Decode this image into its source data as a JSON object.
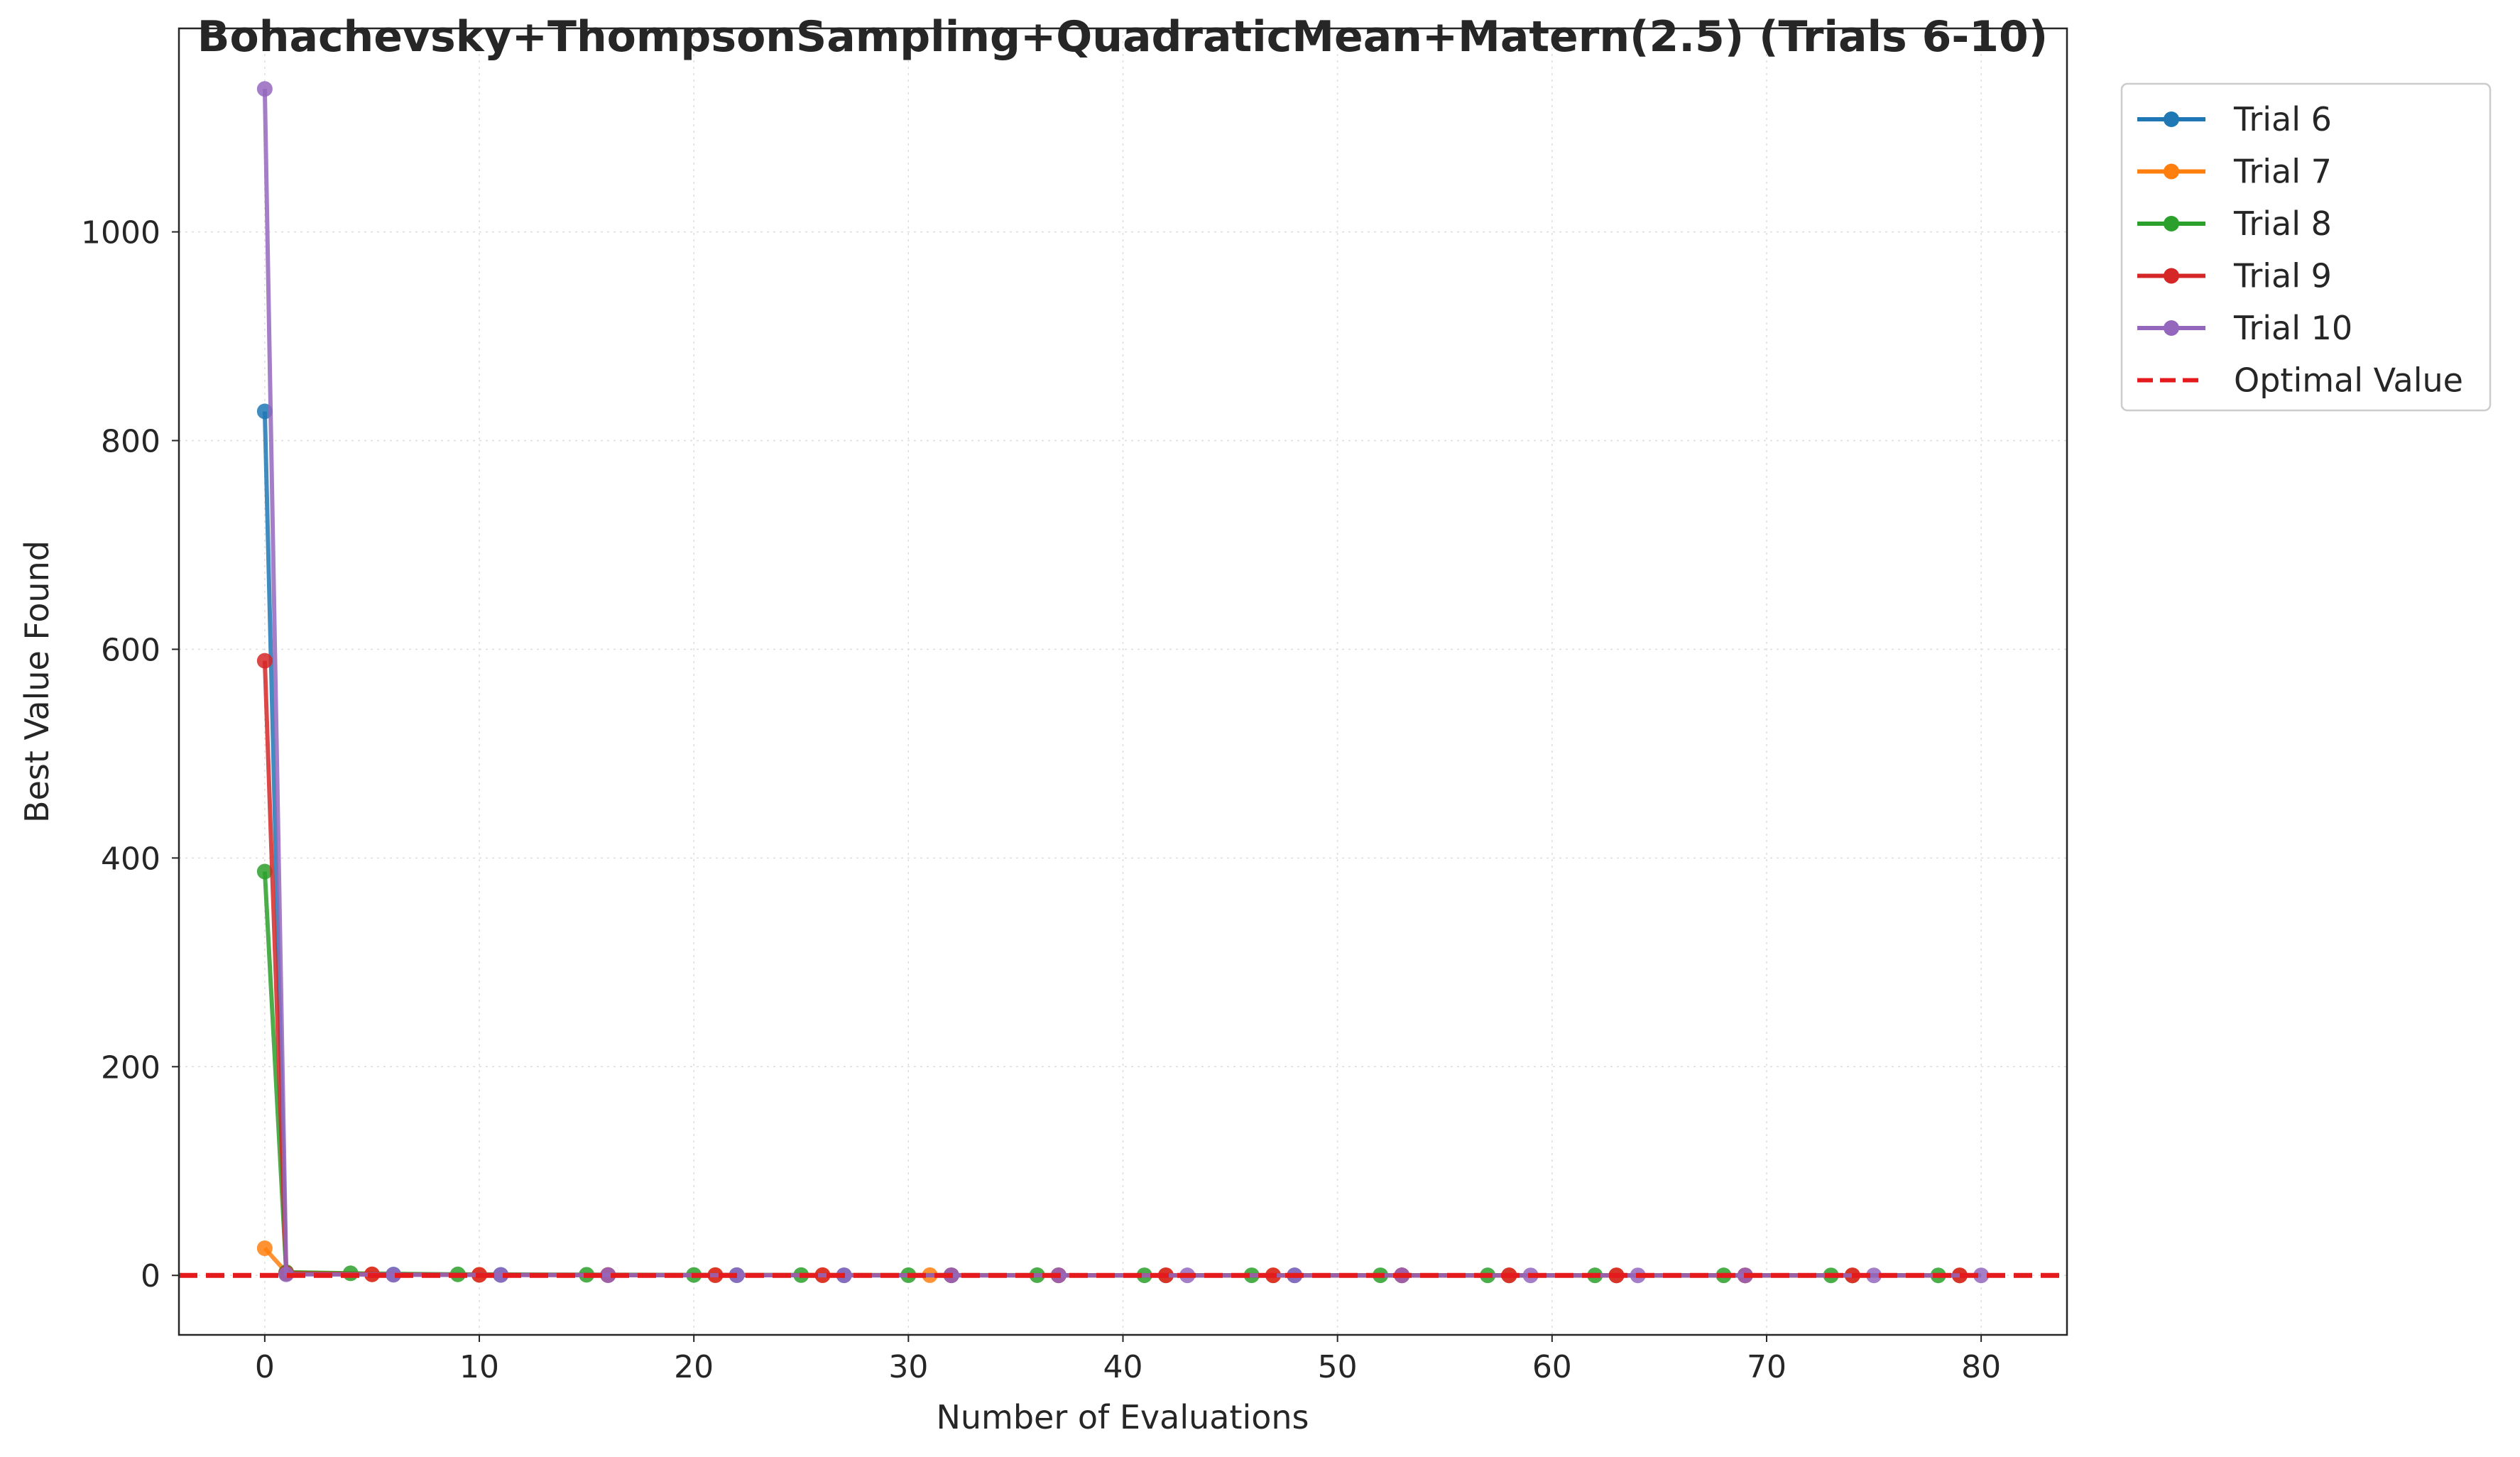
{
  "chart_data": {
    "type": "line",
    "title": "Bohachevsky+ThompsonSampling+QuadraticMean+Matern(2.5) (Trials 6-10)",
    "xlabel": "Number of Evaluations",
    "ylabel": "Best Value Found",
    "xlim": [
      -4,
      84
    ],
    "ylim": [
      -57,
      1195
    ],
    "xticks": [
      0,
      10,
      20,
      30,
      40,
      50,
      60,
      70,
      80
    ],
    "yticks": [
      0,
      200,
      400,
      600,
      800,
      1000
    ],
    "grid": true,
    "legend_position": "outside-top-right",
    "series": [
      {
        "name": "Trial 6",
        "color": "#1f77b4",
        "x": [
          0,
          1,
          6,
          11,
          16,
          22,
          27,
          32,
          37,
          42,
          48,
          53,
          58,
          63,
          69,
          74,
          79
        ],
        "y": [
          828,
          2,
          0.8,
          0.5,
          0.3,
          0.2,
          0.1,
          0.1,
          0.05,
          0.05,
          0.05,
          0.05,
          0.02,
          0.02,
          0.02,
          0.02,
          0.02
        ]
      },
      {
        "name": "Trial 7",
        "color": "#ff7f0e",
        "x": [
          0,
          1,
          5,
          10,
          16,
          21,
          26,
          31,
          37,
          42,
          47,
          53,
          58,
          63,
          69,
          74,
          79
        ],
        "y": [
          26,
          3,
          1,
          0.6,
          0.4,
          0.3,
          0.2,
          0.2,
          0.1,
          0.1,
          0.1,
          0.05,
          0.05,
          0.05,
          0.02,
          0.02,
          0.02
        ]
      },
      {
        "name": "Trial 8",
        "color": "#2ca02c",
        "x": [
          0,
          1,
          4,
          9,
          15,
          20,
          25,
          30,
          36,
          41,
          46,
          52,
          57,
          62,
          68,
          73,
          78
        ],
        "y": [
          387,
          3,
          2,
          1,
          0.6,
          0.4,
          0.3,
          0.2,
          0.2,
          0.1,
          0.1,
          0.1,
          0.05,
          0.05,
          0.05,
          0.02,
          0.02
        ]
      },
      {
        "name": "Trial 9",
        "color": "#d62728",
        "x": [
          0,
          1,
          5,
          10,
          16,
          21,
          26,
          32,
          37,
          42,
          47,
          53,
          58,
          63,
          69,
          74,
          79
        ],
        "y": [
          589,
          2,
          1,
          0.5,
          0.3,
          0.2,
          0.2,
          0.1,
          0.1,
          0.1,
          0.05,
          0.05,
          0.05,
          0.02,
          0.02,
          0.02,
          0.02
        ]
      },
      {
        "name": "Trial 10",
        "color": "#9467bd",
        "x": [
          0,
          1,
          6,
          11,
          16,
          22,
          27,
          32,
          37,
          43,
          48,
          53,
          59,
          64,
          69,
          75,
          80
        ],
        "y": [
          1137,
          1,
          0.6,
          0.4,
          0.3,
          0.2,
          0.1,
          0.1,
          0.1,
          0.05,
          0.05,
          0.05,
          0.02,
          0.02,
          0.02,
          0.02,
          0.02
        ]
      }
    ],
    "reference_line": {
      "name": "Optimal Value",
      "y": 0,
      "color": "#e41a1c",
      "style": "dashed"
    }
  }
}
